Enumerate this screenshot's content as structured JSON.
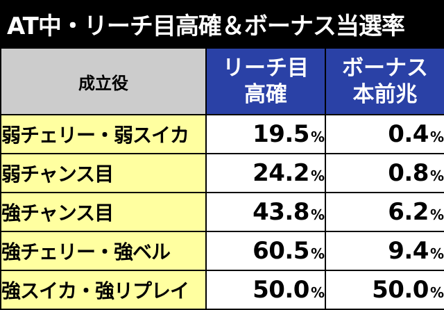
{
  "title": "AT中・リーチ目高確＆ボーナス当選率",
  "header": {
    "role": "成立役",
    "reach_line1": "リーチ目",
    "reach_line2": "高確",
    "bonus_line1": "ボーナス",
    "bonus_line2": "本前兆"
  },
  "unit": "%",
  "rows": [
    {
      "role": "弱チェリー・弱スイカ",
      "reach": "19.5",
      "bonus": "0.4"
    },
    {
      "role": "弱チャンス目",
      "reach": "24.2",
      "bonus": "0.8"
    },
    {
      "role": "強チャンス目",
      "reach": "43.8",
      "bonus": "6.2"
    },
    {
      "role": "強チェリー・強ベル",
      "reach": "60.5",
      "bonus": "9.4"
    },
    {
      "role": "強スイカ・強リプレイ",
      "reach": "50.0",
      "bonus": "50.0"
    }
  ],
  "colors": {
    "title_bg": "#000000",
    "header_role_bg": "#cccccc",
    "header_col_bg": "#2a41a6",
    "role_bg": "#ffffa0",
    "value_bg": "#ffffff"
  }
}
